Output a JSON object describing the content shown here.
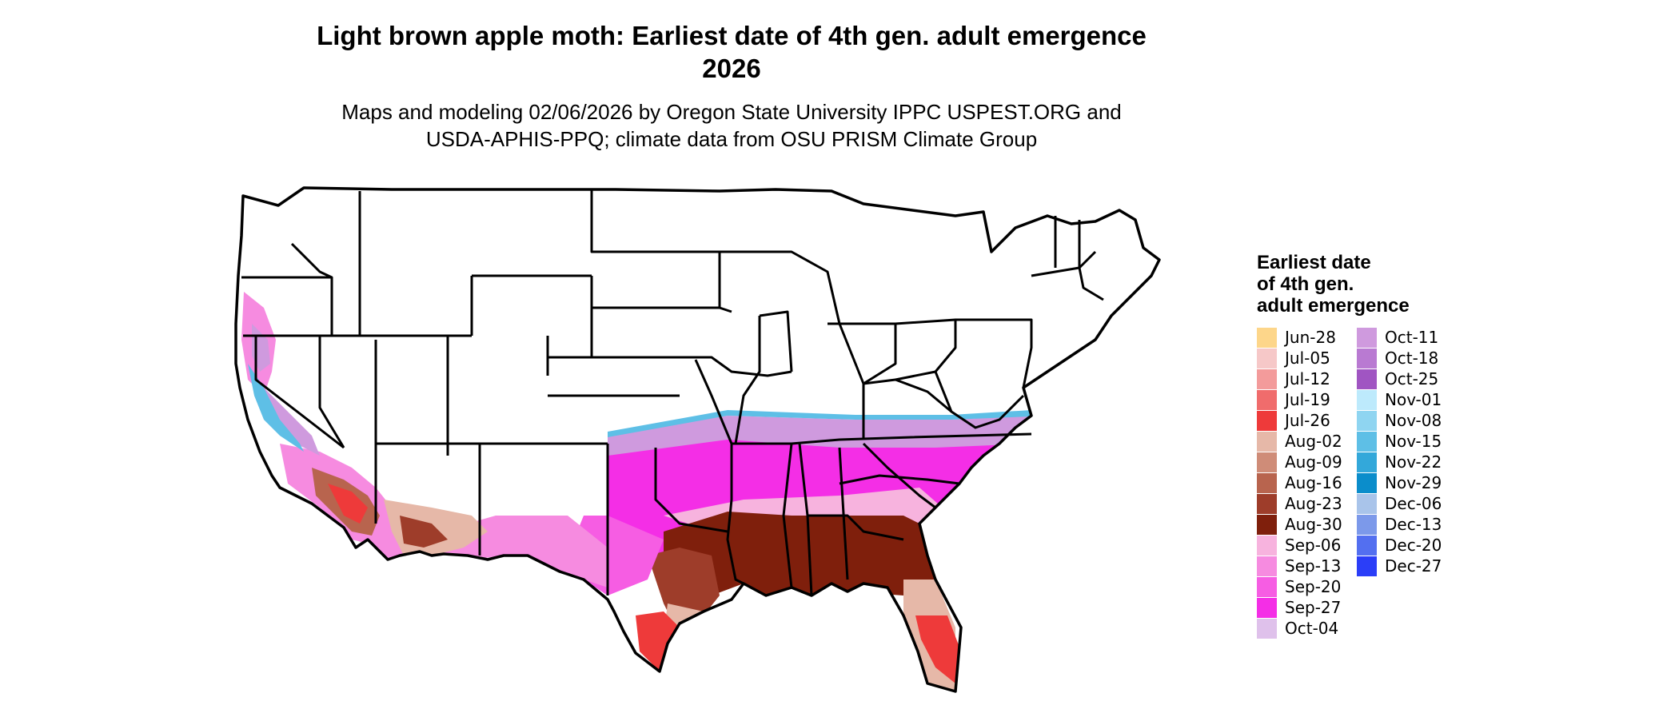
{
  "map": {
    "title_line1": "Light brown apple moth: Earliest date of 4th gen. adult emergence",
    "title_line2": "2026",
    "subtitle_line1": "Maps and modeling 02/06/2026 by Oregon State University IPPC USPEST.ORG and",
    "subtitle_line2": "USDA-APHIS-PPQ; climate data from OSU PRISM Climate Group"
  },
  "legend": {
    "title_line1": "Earliest date",
    "title_line2": "of 4th gen.",
    "title_line3": "adult emergence",
    "col1": [
      {
        "label": "Jun-28",
        "color": "#fdd68a"
      },
      {
        "label": "Jul-05",
        "color": "#f6c8c8"
      },
      {
        "label": "Jul-12",
        "color": "#f39b9b"
      },
      {
        "label": "Jul-19",
        "color": "#f06c6c"
      },
      {
        "label": "Jul-26",
        "color": "#ee3a3a"
      },
      {
        "label": "Aug-02",
        "color": "#e6b8a8"
      },
      {
        "label": "Aug-09",
        "color": "#cf8c78"
      },
      {
        "label": "Aug-16",
        "color": "#b8644e"
      },
      {
        "label": "Aug-23",
        "color": "#9e3d2a"
      },
      {
        "label": "Aug-30",
        "color": "#7f1f0c"
      },
      {
        "label": "Sep-06",
        "color": "#f7b3de"
      },
      {
        "label": "Sep-13",
        "color": "#f68be0"
      },
      {
        "label": "Sep-20",
        "color": "#f65de3"
      },
      {
        "label": "Sep-27",
        "color": "#f42ee6"
      },
      {
        "label": "Oct-04",
        "color": "#dfc1eb"
      }
    ],
    "col2": [
      {
        "label": "Oct-11",
        "color": "#cf9ade"
      },
      {
        "label": "Oct-18",
        "color": "#b97ad2"
      },
      {
        "label": "Oct-25",
        "color": "#a055c2"
      },
      {
        "label": "Nov-01",
        "color": "#bdeafc"
      },
      {
        "label": "Nov-08",
        "color": "#8fd5f1"
      },
      {
        "label": "Nov-15",
        "color": "#5ebfe6"
      },
      {
        "label": "Nov-22",
        "color": "#33a8da"
      },
      {
        "label": "Nov-29",
        "color": "#0b8dcb"
      },
      {
        "label": "Dec-06",
        "color": "#a9c4ea"
      },
      {
        "label": "Dec-13",
        "color": "#7c99ea"
      },
      {
        "label": "Dec-20",
        "color": "#536ff0"
      },
      {
        "label": "Dec-27",
        "color": "#2b3ef8"
      }
    ]
  }
}
